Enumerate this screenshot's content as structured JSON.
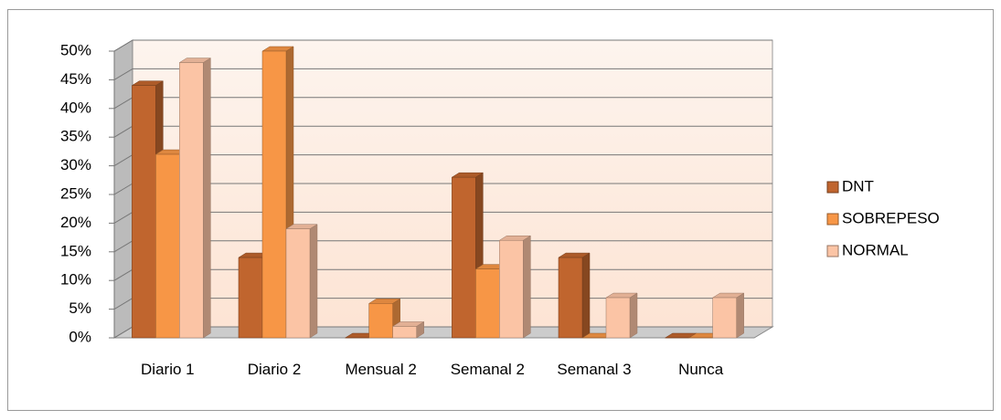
{
  "chart_data": {
    "type": "bar3d",
    "categories": [
      "Diario 1",
      "Diario 2",
      "Mensual 2",
      "Semanal 2",
      "Semanal 3",
      "Nunca"
    ],
    "series": [
      {
        "name": "DNT",
        "color": "#c0652e",
        "values": [
          44,
          14,
          0,
          28,
          14,
          0
        ]
      },
      {
        "name": "SOBREPESO",
        "color": "#f79646",
        "values": [
          32,
          50,
          6,
          12,
          0,
          0
        ]
      },
      {
        "name": "NORMAL",
        "color": "#fbc4a5",
        "values": [
          48,
          19,
          2,
          17,
          7,
          7
        ]
      }
    ],
    "ylim": [
      0,
      50
    ],
    "yticks": [
      {
        "value": 0,
        "label": "0%"
      },
      {
        "value": 5,
        "label": "5%"
      },
      {
        "value": 10,
        "label": "10%"
      },
      {
        "value": 15,
        "label": "15%"
      },
      {
        "value": 20,
        "label": "20%"
      },
      {
        "value": 25,
        "label": "25%"
      },
      {
        "value": 30,
        "label": "30%"
      },
      {
        "value": 35,
        "label": "35%"
      },
      {
        "value": 40,
        "label": "40%"
      },
      {
        "value": 45,
        "label": "45%"
      },
      {
        "value": 50,
        "label": "50%"
      }
    ],
    "grid": true,
    "legend": "right"
  }
}
